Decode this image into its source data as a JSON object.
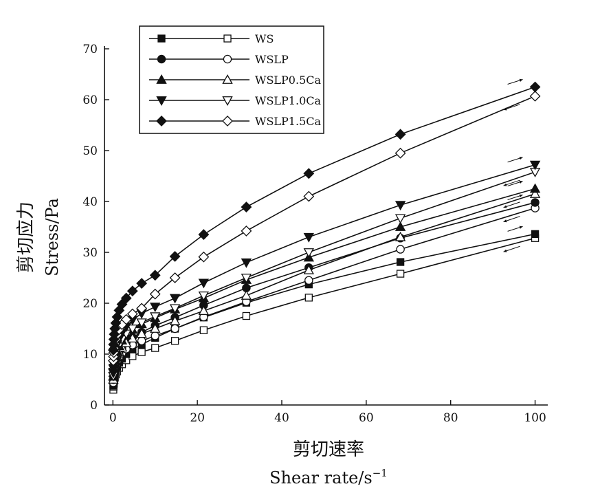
{
  "chart_data": {
    "type": "line",
    "xlabel_cn": "剪切速率",
    "xlabel_en": "Shear rate/s",
    "xlabel_sup": "−1",
    "ylabel_cn": "剪切应力",
    "ylabel_en": "Stress/Pa",
    "xlim": [
      -2,
      103
    ],
    "ylim": [
      0,
      70
    ],
    "xticks": [
      0,
      20,
      40,
      60,
      80,
      100
    ],
    "yticks": [
      0,
      10,
      20,
      30,
      40,
      50,
      60,
      70
    ],
    "x": [
      0.1,
      0.15,
      0.22,
      0.32,
      0.46,
      0.68,
      1.0,
      1.47,
      2.15,
      3.16,
      4.64,
      6.81,
      10,
      14.7,
      21.5,
      31.6,
      46.4,
      68.1,
      100
    ],
    "series": [
      {
        "name": "WS",
        "marker": "square",
        "up": [
          3.8,
          4.4,
          5.0,
          5.6,
          6.2,
          6.8,
          7.5,
          8.3,
          9.1,
          10.0,
          10.9,
          11.9,
          13.2,
          15.0,
          17.2,
          20.1,
          23.7,
          28.1,
          33.6
        ],
        "down": [
          3.0,
          3.6,
          4.2,
          4.8,
          5.4,
          6.0,
          6.6,
          7.3,
          8.0,
          8.8,
          9.6,
          10.4,
          11.2,
          12.6,
          14.7,
          17.5,
          21.1,
          25.8,
          32.8
        ]
      },
      {
        "name": "WSLP",
        "marker": "circle",
        "up": [
          5.0,
          5.6,
          6.3,
          7.0,
          7.8,
          8.6,
          9.4,
          10.3,
          11.3,
          12.3,
          13.3,
          14.3,
          15.6,
          17.2,
          19.6,
          23.0,
          27.0,
          32.8,
          39.8
        ],
        "down": [
          4.4,
          5.0,
          5.7,
          6.4,
          7.1,
          7.8,
          8.6,
          9.4,
          10.2,
          11.0,
          11.8,
          12.6,
          13.6,
          15.0,
          17.3,
          20.3,
          24.5,
          30.6,
          38.7
        ]
      },
      {
        "name": "WSLP0.5Ca",
        "marker": "triangle-up",
        "up": [
          5.6,
          6.3,
          7.0,
          7.8,
          8.7,
          9.6,
          10.6,
          11.6,
          12.7,
          13.7,
          14.8,
          15.9,
          17.1,
          18.8,
          21.0,
          24.6,
          29.0,
          35.0,
          42.5
        ],
        "down": [
          5.0,
          5.7,
          6.4,
          7.1,
          7.9,
          8.7,
          9.5,
          10.4,
          11.3,
          12.2,
          13.1,
          14.0,
          15.0,
          16.5,
          18.5,
          21.5,
          26.5,
          33.0,
          41.5
        ]
      },
      {
        "name": "WSLP1.0Ca",
        "marker": "triangle-down",
        "up": [
          6.3,
          7.1,
          7.9,
          8.8,
          9.8,
          10.8,
          11.9,
          13.0,
          14.2,
          15.4,
          16.7,
          18.0,
          19.3,
          21.0,
          24.0,
          28.0,
          33.0,
          39.3,
          47.2
        ],
        "down": [
          5.7,
          6.5,
          7.3,
          8.1,
          9.0,
          9.9,
          10.8,
          11.8,
          12.9,
          14.0,
          15.0,
          16.2,
          17.4,
          19.0,
          21.5,
          25.0,
          30.0,
          36.7,
          45.8
        ]
      },
      {
        "name": "WSLP1.5Ca",
        "marker": "diamond",
        "up": [
          10.8,
          11.9,
          12.9,
          13.9,
          15.0,
          16.1,
          17.3,
          18.6,
          19.8,
          21.0,
          22.4,
          23.9,
          25.5,
          29.2,
          33.5,
          38.9,
          45.5,
          53.2,
          62.5
        ],
        "down": [
          8.7,
          9.5,
          10.3,
          11.1,
          12.0,
          12.9,
          13.8,
          14.8,
          15.8,
          16.8,
          17.9,
          19.0,
          21.8,
          25.0,
          29.1,
          34.2,
          41.0,
          49.5,
          60.7
        ]
      }
    ],
    "legend_position": "top-left"
  }
}
